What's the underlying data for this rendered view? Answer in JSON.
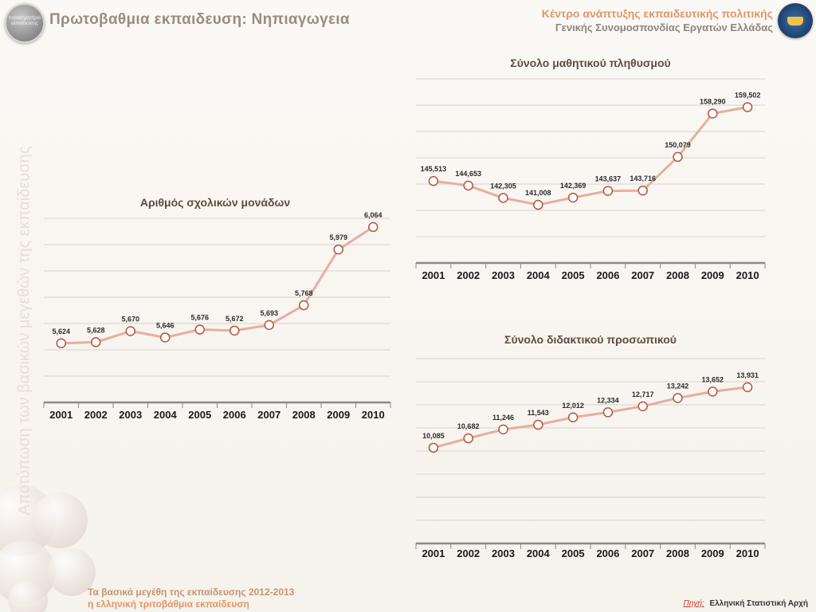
{
  "header": {
    "title": "Πρωτοβαθμια εκπαιδευση: Νηπιαγωγεια",
    "logo_left_text": "παρατηρητήριο εκπαίδευσης",
    "org_line1": "Κέντρο ανάπτυξης εκπαιδευτικής πολιτικής",
    "org_line2": "Γενικής Συνομοσπονδίας Εργατών Ελλάδας"
  },
  "side_title": "Αποτύπωση των βασικών μεγεθών της εκπαίδευσης",
  "footer": {
    "line1": "Τα βασικά μεγέθη της εκπαίδευσης 2012-2013",
    "line2": "η ελληνική τριτοβάθμια εκπαίδευση",
    "source_label": "Πηγή:",
    "source_text": "Ελληνική Στατιστική Αρχή"
  },
  "colors": {
    "line": "#e6aea0",
    "marker_stroke": "#b9533a",
    "marker_fill": "#ffffff",
    "grid": "#d6d2cd",
    "axis": "#8a8a8a"
  },
  "chart_data": [
    {
      "type": "line",
      "title": "Αριθμός σχολικών μονάδων",
      "categories": [
        "2001",
        "2002",
        "2003",
        "2004",
        "2005",
        "2006",
        "2007",
        "2008",
        "2009",
        "2010"
      ],
      "values": [
        5624,
        5628,
        5670,
        5646,
        5676,
        5672,
        5693,
        5768,
        5979,
        6064
      ],
      "value_labels": [
        "5,624",
        "5,628",
        "5,670",
        "5,646",
        "5,676",
        "5,672",
        "5,693",
        "5,768",
        "5,979",
        "6,064"
      ],
      "ylim": [
        5400,
        6100
      ],
      "grid": true
    },
    {
      "type": "line",
      "title": "Σύνολο μαθητικού πληθυσμού",
      "categories": [
        "2001",
        "2002",
        "2003",
        "2004",
        "2005",
        "2006",
        "2007",
        "2008",
        "2009",
        "2010"
      ],
      "values": [
        145513,
        144653,
        142305,
        141008,
        142369,
        143637,
        143716,
        150079,
        158290,
        159502
      ],
      "value_labels": [
        "145,513",
        "144,653",
        "142,305",
        "141,008",
        "142,369",
        "143,637",
        "143,716",
        "150,079",
        "158,290",
        "159,502"
      ],
      "ylim": [
        130000,
        165000
      ],
      "grid": true
    },
    {
      "type": "line",
      "title": "Σύνολο διδακτικού προσωπικού",
      "categories": [
        "2001",
        "2002",
        "2003",
        "2004",
        "2005",
        "2006",
        "2007",
        "2008",
        "2009",
        "2010"
      ],
      "values": [
        10085,
        10682,
        11246,
        11543,
        12012,
        12334,
        12717,
        13242,
        13652,
        13931
      ],
      "value_labels": [
        "10,085",
        "10,682",
        "11,246",
        "11,543",
        "12,012",
        "12,334",
        "12,717",
        "13,242",
        "13,652",
        "13,931"
      ],
      "ylim": [
        4000,
        16000
      ],
      "grid": true
    }
  ]
}
